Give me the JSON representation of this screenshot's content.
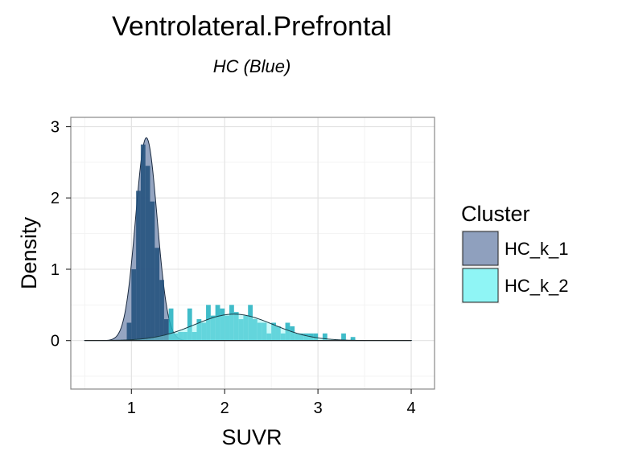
{
  "chart_data": {
    "type": "histogram",
    "title": "Ventrolateral.Prefrontal",
    "subtitle": "HC (Blue)",
    "xlabel": "SUVR",
    "ylabel": "Density",
    "xlim": [
      0.35,
      4.25
    ],
    "ylim": [
      -0.68,
      3.13
    ],
    "x_ticks": [
      1,
      2,
      3,
      4
    ],
    "y_ticks": [
      0,
      1,
      2,
      3
    ],
    "grid": true,
    "legend": {
      "title": "Cluster",
      "position": "right"
    },
    "colors": {
      "hc_k_1": "#1f3e73",
      "hc_k_2": "#00b6c4",
      "hist_fill": "#1f4e7a",
      "panel_border": "#888888",
      "grid_major": "#e3e3e3",
      "grid_minor": "#f3f3f3"
    },
    "series": [
      {
        "name": "HC_k_1",
        "fill": "#8fa0be",
        "hist_color": "#1f4e7a",
        "bar_width": 0.05,
        "hist_x": [
          0.975,
          1.025,
          1.075,
          1.125,
          1.175,
          1.225,
          1.275,
          1.325,
          1.375
        ],
        "hist_y": [
          0.25,
          1.0,
          2.1,
          2.75,
          2.45,
          1.95,
          1.3,
          0.85,
          0.3
        ],
        "density": {
          "mean": 1.16,
          "sd": 0.115,
          "weight": 0.82
        }
      },
      {
        "name": "HC_k_2",
        "fill": "#8ff5f5",
        "hist_color": "#1fb0bf",
        "bar_width": 0.05,
        "hist_x": [
          1.425,
          1.475,
          1.525,
          1.575,
          1.625,
          1.675,
          1.725,
          1.775,
          1.825,
          1.875,
          1.925,
          1.975,
          2.025,
          2.075,
          2.125,
          2.175,
          2.225,
          2.275,
          2.325,
          2.375,
          2.425,
          2.475,
          2.525,
          2.575,
          2.625,
          2.675,
          2.725,
          2.775,
          2.825,
          2.875,
          2.925,
          2.975,
          3.025,
          3.075,
          3.125,
          3.175,
          3.225,
          3.275,
          3.325,
          3.375
        ],
        "hist_y": [
          0.45,
          0.1,
          0.12,
          0.12,
          0.45,
          0.12,
          0.3,
          0.25,
          0.5,
          0.35,
          0.5,
          0.45,
          0.35,
          0.5,
          0.4,
          0.3,
          0.35,
          0.5,
          0.3,
          0.25,
          0.25,
          0.1,
          0.25,
          0.2,
          0.1,
          0.25,
          0.2,
          0.1,
          0.1,
          0.1,
          0.1,
          0.1,
          0.0,
          0.1,
          0.0,
          0.0,
          0.0,
          0.1,
          0.0,
          0.05
        ],
        "density": {
          "mean": 2.1,
          "sd": 0.42,
          "weight": 0.39
        }
      }
    ]
  }
}
